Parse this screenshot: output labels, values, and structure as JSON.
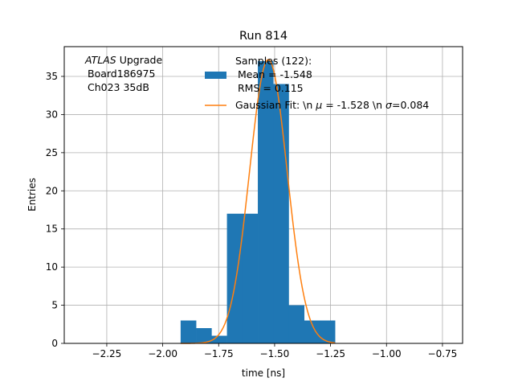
{
  "chart_data": {
    "type": "bar",
    "title": "Run 814",
    "xlabel": "time [ns]",
    "ylabel": "Entries",
    "xlim": [
      -2.44,
      -0.66
    ],
    "ylim": [
      0,
      38.9
    ],
    "xticks": [
      -2.25,
      -2.0,
      -1.75,
      -1.5,
      -1.25,
      -1.0,
      -0.75
    ],
    "xtick_labels": [
      "−2.25",
      "−2.00",
      "−1.75",
      "−1.50",
      "−1.25",
      "−1.00",
      "−0.75"
    ],
    "yticks": [
      0,
      5,
      10,
      15,
      20,
      25,
      30,
      35
    ],
    "ytick_labels": [
      "0",
      "5",
      "10",
      "15",
      "20",
      "25",
      "30",
      "35"
    ],
    "grid": true,
    "annotation": {
      "line1_italic": "ATLAS",
      "line1_rest": " Upgrade",
      "line2": "Board186975",
      "line3": "Ch023 35dB"
    },
    "legend": {
      "placement": "top-center",
      "histogram_lines": [
        "Samples (122):",
        "Mean = -1.548",
        "RMS = 0.115"
      ],
      "fit_parts": {
        "prefix": "Gaussian Fit: \\n ",
        "mu_symbol": "μ",
        "mu_text": " = -1.528 \\n ",
        "sigma_symbol": "σ",
        "sigma_text": "=0.084"
      }
    },
    "series": [
      {
        "kind": "histogram",
        "bin_edges": [
          -1.92,
          -1.851,
          -1.782,
          -1.713,
          -1.644,
          -1.575,
          -1.506,
          -1.437,
          -1.368,
          -1.299,
          -1.23
        ],
        "counts": [
          3,
          2,
          1,
          17,
          17,
          37,
          34,
          5,
          3,
          3
        ],
        "color": "#1f77b4"
      },
      {
        "kind": "gaussian",
        "amplitude": 37.2,
        "mean": -1.528,
        "sigma": 0.084,
        "x_range": [
          -1.92,
          -1.23
        ],
        "color": "#ff7f0e"
      }
    ]
  }
}
